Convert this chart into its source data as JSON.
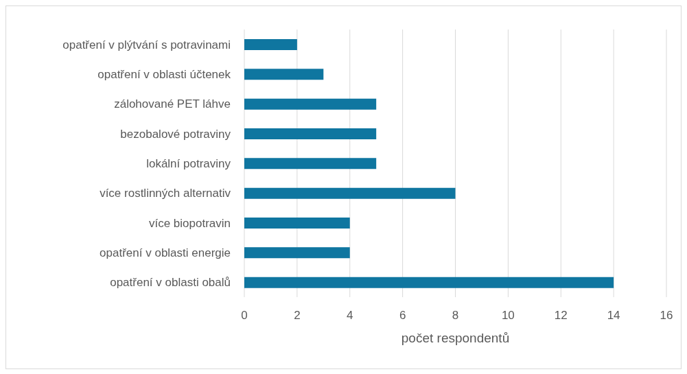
{
  "chart_data": {
    "type": "bar",
    "orientation": "horizontal",
    "xlabel": "počet respondentů",
    "categories": [
      "opatření v plýtvání s potravinami",
      "opatření v oblasti účtenek",
      "zálohované PET láhve",
      "bezobalové potraviny",
      "lokální potraviny",
      "více rostlinných alternativ",
      "více biopotravin",
      "opatření v oblasti energie",
      "opatření v oblasti obalů"
    ],
    "values": [
      2,
      3,
      5,
      5,
      5,
      8,
      4,
      4,
      14
    ],
    "color": "#0f76a0",
    "xlim": [
      0,
      16
    ],
    "xticks": [
      0,
      2,
      4,
      6,
      8,
      10,
      12,
      14,
      16
    ],
    "grid": "x"
  }
}
